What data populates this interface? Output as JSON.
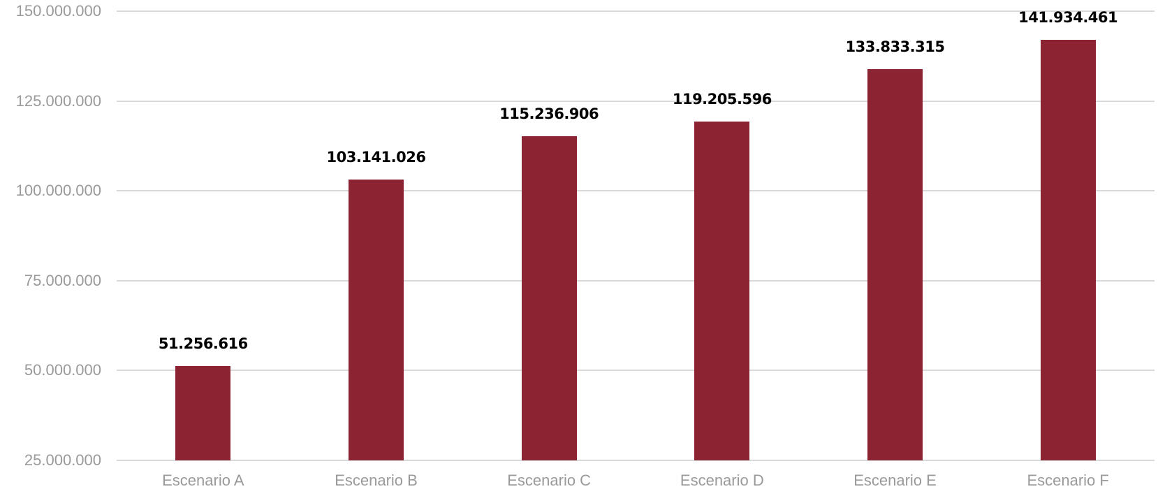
{
  "chart_data": {
    "type": "bar",
    "title": "",
    "xlabel": "",
    "ylabel": "",
    "categories": [
      "Escenario A",
      "Escenario B",
      "Escenario C",
      "Escenario D",
      "Escenario E",
      "Escenario F"
    ],
    "values": [
      51256616,
      103141026,
      115236906,
      119205596,
      133833315,
      141934461
    ],
    "value_labels": [
      "51.256.616",
      "103.141.026",
      "115.236.906",
      "119.205.596",
      "133.833.315",
      "141.934.461"
    ],
    "ylim": [
      25000000,
      150000000
    ],
    "yticks": [
      25000000,
      50000000,
      75000000,
      100000000,
      125000000,
      150000000
    ],
    "ytick_labels": [
      "25.000.000",
      "50.000.000",
      "75.000.000",
      "100.000.000",
      "125.000.000",
      "150.000.000"
    ],
    "grid": true,
    "legend": null,
    "colors": {
      "bar": "#8b2332",
      "grid": "#d9d9d9",
      "axis_text": "#9a9a9a",
      "value_text": "#000000"
    }
  }
}
